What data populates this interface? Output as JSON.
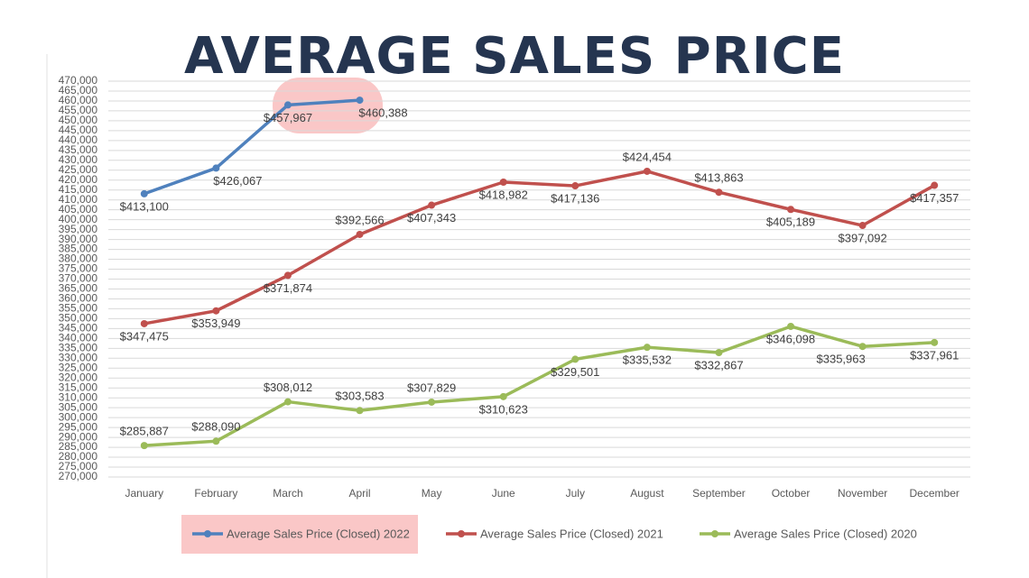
{
  "chart_data": {
    "type": "line",
    "title": "AVERAGE SALES PRICE",
    "categories": [
      "January",
      "February",
      "March",
      "April",
      "May",
      "June",
      "July",
      "August",
      "September",
      "October",
      "November",
      "December"
    ],
    "series": [
      {
        "name": "Average Sales Price (Closed) 2022",
        "color": "#4f81bd",
        "values": [
          413100,
          426067,
          457967,
          460388,
          null,
          null,
          null,
          null,
          null,
          null,
          null,
          null
        ],
        "value_labels": [
          "$413,100",
          "$426,067",
          "$457,967",
          "$460,388",
          null,
          null,
          null,
          null,
          null,
          null,
          null,
          null
        ]
      },
      {
        "name": "Average Sales Price (Closed) 2021",
        "color": "#c0504d",
        "values": [
          347475,
          353949,
          371874,
          392566,
          407343,
          418982,
          417136,
          424454,
          413863,
          405189,
          397092,
          417357
        ],
        "value_labels": [
          "$347,475",
          "$353,949",
          "$371,874",
          "$392,566",
          "$407,343",
          "$418,982",
          "$417,136",
          "$424,454",
          "$413,863",
          "$405,189",
          "$397,092",
          "$417,357"
        ]
      },
      {
        "name": "Average Sales Price (Closed) 2020",
        "color": "#9bbb59",
        "values": [
          285887,
          288090,
          308012,
          303583,
          307829,
          310623,
          329501,
          335532,
          332867,
          346098,
          335963,
          337961
        ],
        "value_labels": [
          "$285,887",
          "$288,090",
          "$308,012",
          "$303,583",
          "$307,829",
          "$310,623",
          "$329,501",
          "$335,532",
          "$332,867",
          "$346,098",
          "$335,963",
          "$337,961"
        ]
      }
    ],
    "ylim": [
      270000,
      470000
    ],
    "yticks": [
      {
        "value": 270000,
        "label": "270,000"
      },
      {
        "value": 275000,
        "label": "275,000"
      },
      {
        "value": 280000,
        "label": "280,000"
      },
      {
        "value": 285000,
        "label": "285,000"
      },
      {
        "value": 290000,
        "label": "290,000"
      },
      {
        "value": 295000,
        "label": "295,000"
      },
      {
        "value": 300000,
        "label": "300,000"
      },
      {
        "value": 305000,
        "label": "305,000"
      },
      {
        "value": 310000,
        "label": "310,000"
      },
      {
        "value": 315000,
        "label": "315,000"
      },
      {
        "value": 320000,
        "label": "320,000"
      },
      {
        "value": 325000,
        "label": "325,000"
      },
      {
        "value": 330000,
        "label": "330,000"
      },
      {
        "value": 335000,
        "label": "335,000"
      },
      {
        "value": 340000,
        "label": "340,000"
      },
      {
        "value": 345000,
        "label": "345,000"
      },
      {
        "value": 350000,
        "label": "350,000"
      },
      {
        "value": 355000,
        "label": "355,000"
      },
      {
        "value": 360000,
        "label": "360,000"
      },
      {
        "value": 365000,
        "label": "365,000"
      },
      {
        "value": 370000,
        "label": "370,000"
      },
      {
        "value": 375000,
        "label": "375,000"
      },
      {
        "value": 380000,
        "label": "380,000"
      },
      {
        "value": 385000,
        "label": "385,000"
      },
      {
        "value": 390000,
        "label": "390,000"
      },
      {
        "value": 395000,
        "label": "395,000"
      },
      {
        "value": 400000,
        "label": "400,000"
      },
      {
        "value": 405000,
        "label": "405,000"
      },
      {
        "value": 410000,
        "label": "410,000"
      },
      {
        "value": 415000,
        "label": "415,000"
      },
      {
        "value": 420000,
        "label": "420,000"
      },
      {
        "value": 425000,
        "label": "425,000"
      },
      {
        "value": 430000,
        "label": "430,000"
      },
      {
        "value": 435000,
        "label": "435,000"
      },
      {
        "value": 440000,
        "label": "440,000"
      },
      {
        "value": 445000,
        "label": "445,000"
      },
      {
        "value": 450000,
        "label": "450,000"
      },
      {
        "value": 455000,
        "label": "455,000"
      },
      {
        "value": 460000,
        "label": "460,000"
      },
      {
        "value": 465000,
        "label": "465,000"
      },
      {
        "value": 470000,
        "label": "470,000"
      }
    ],
    "grid": true,
    "legend": "bottom"
  }
}
